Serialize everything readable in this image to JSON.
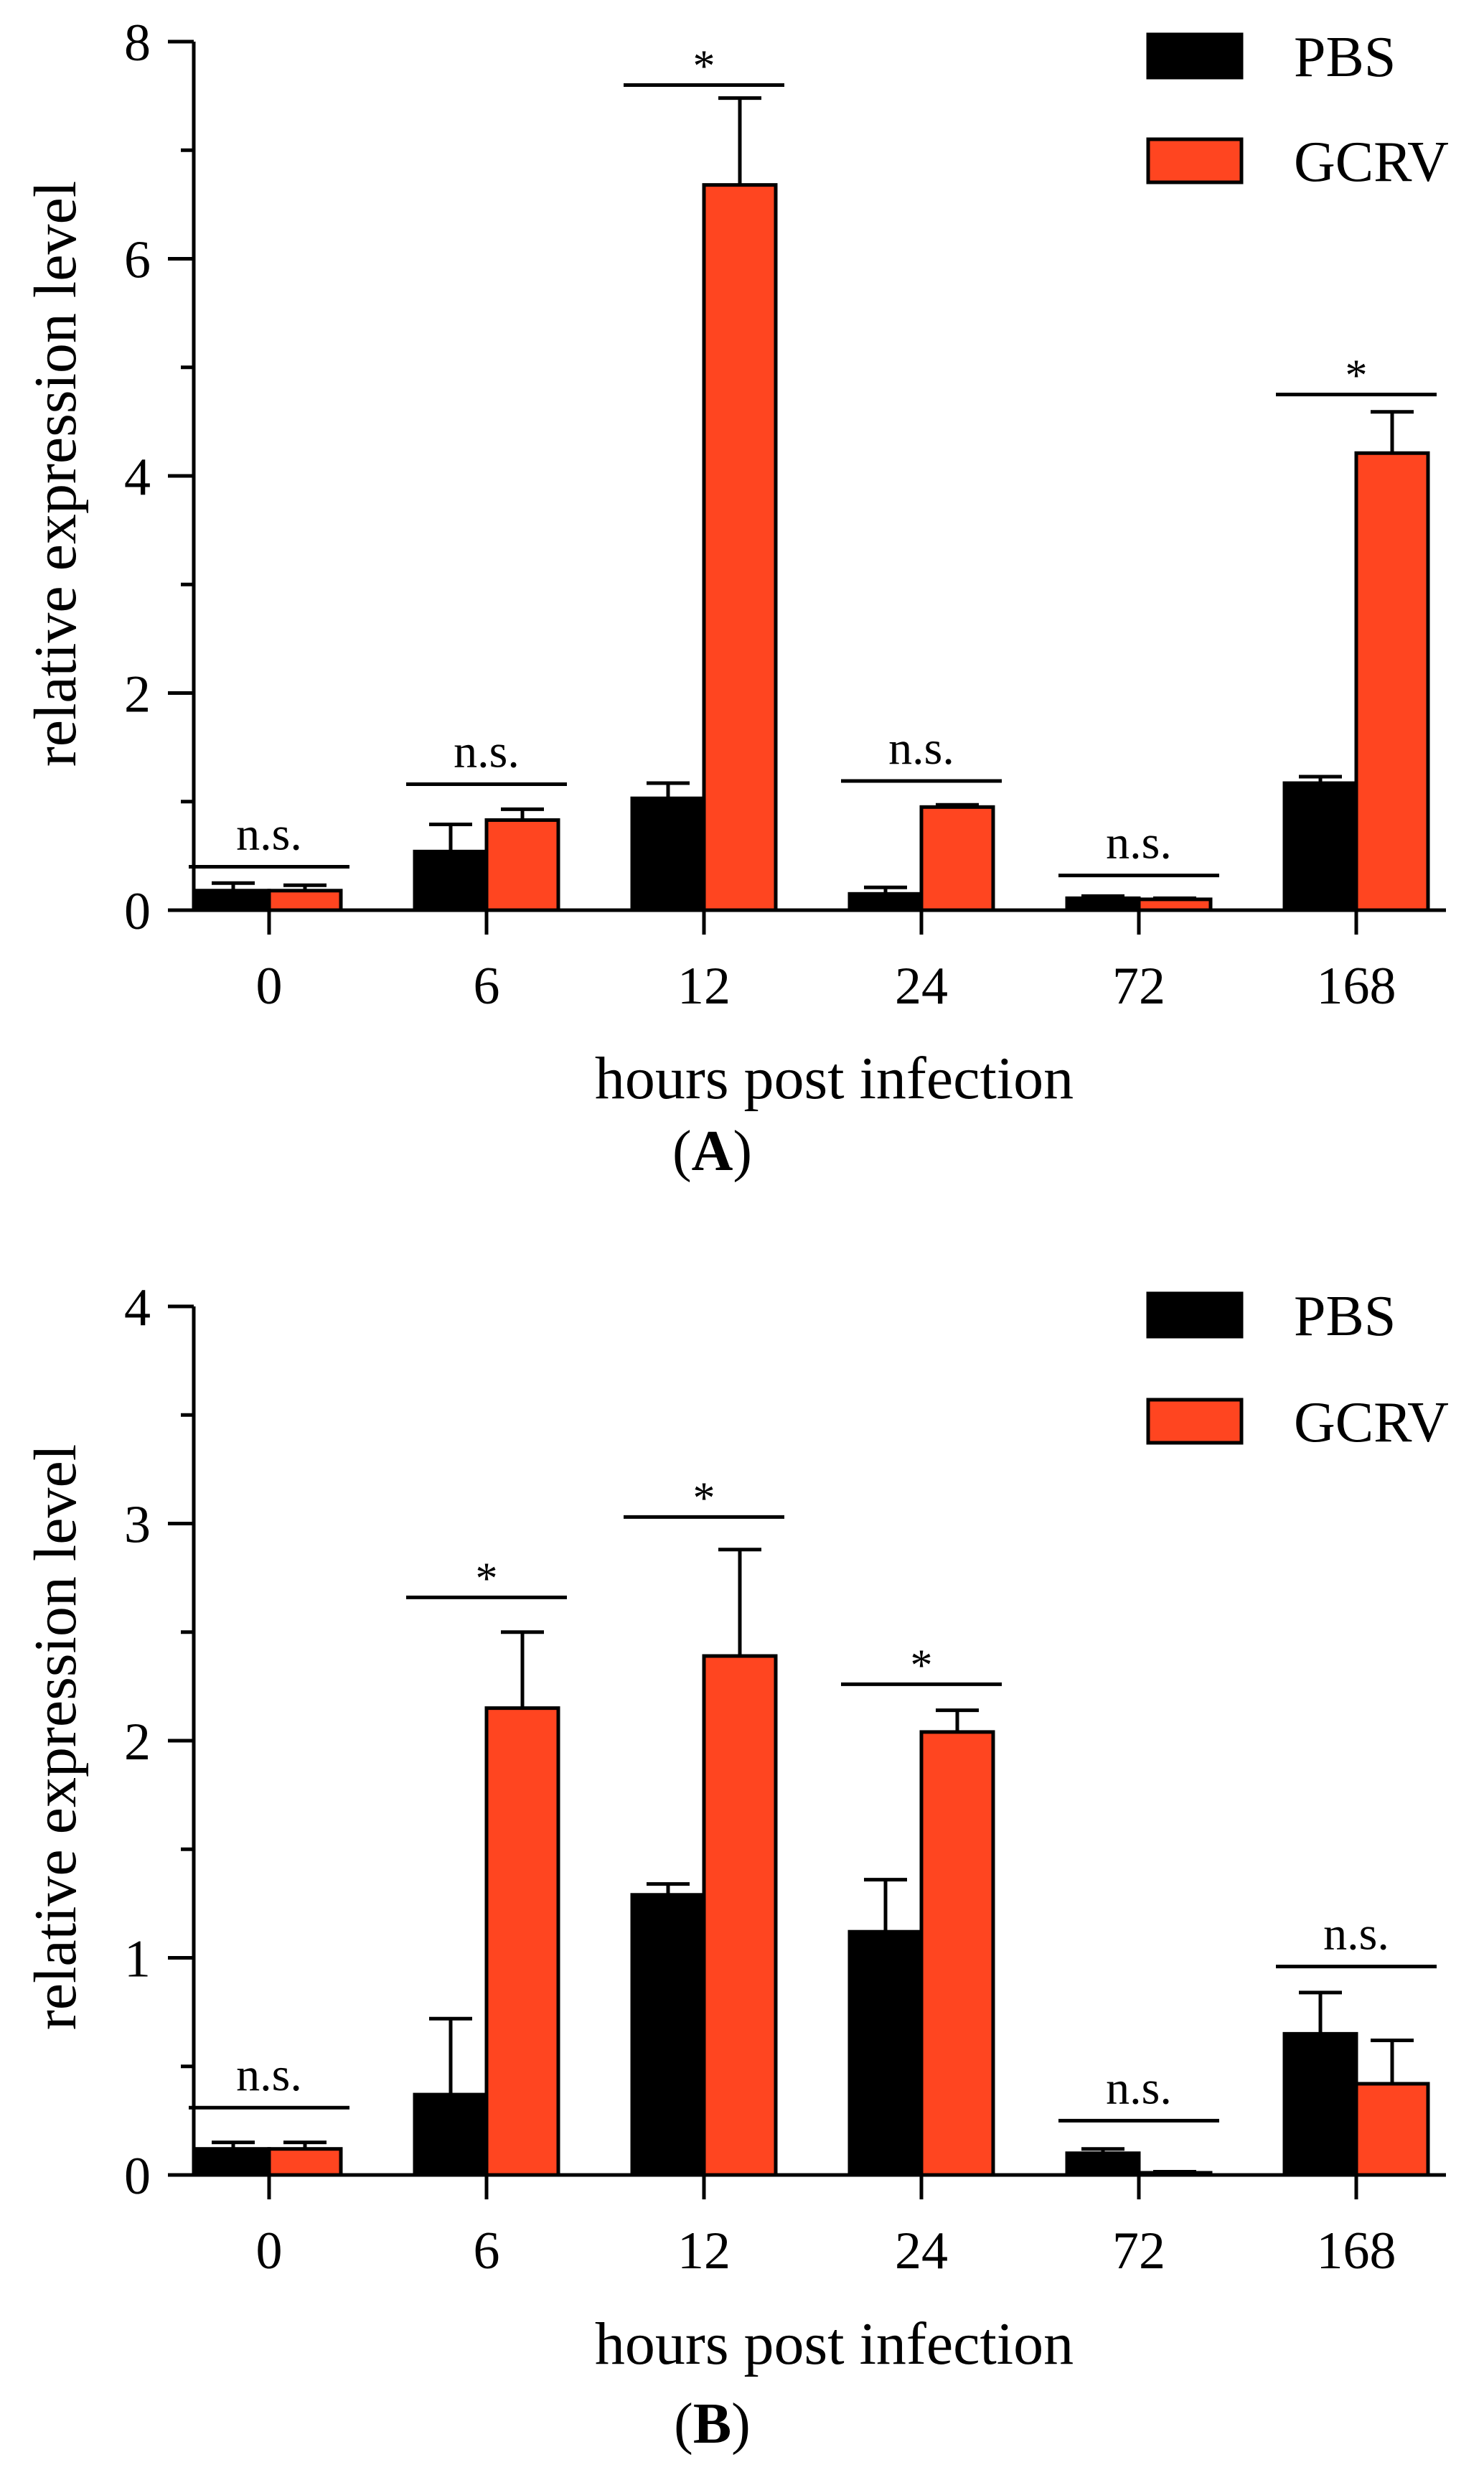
{
  "colors": {
    "pbs": "#000000",
    "gcrv": "#ff4520",
    "axis": "#000000"
  },
  "chart_data": [
    {
      "type": "bar",
      "panel_label": "A",
      "xlabel": "hours post infection",
      "ylabel": "relative expression level",
      "ylim": [
        0,
        8
      ],
      "yticks": [
        "0",
        "2",
        "4",
        "6",
        "8"
      ],
      "ytick_values": [
        0,
        2,
        4,
        6,
        8
      ],
      "minor_yticks": [
        1,
        3,
        5,
        7
      ],
      "categories": [
        "0",
        "6",
        "12",
        "24",
        "72",
        "168"
      ],
      "legend": [
        "PBS",
        "GCRV"
      ],
      "legend_position": "top-right",
      "series": [
        {
          "name": "PBS",
          "values": [
            0.18,
            0.54,
            1.03,
            0.15,
            0.11,
            1.17
          ],
          "errors": [
            0.07,
            0.25,
            0.14,
            0.06,
            0.02,
            0.06
          ]
        },
        {
          "name": "GCRV",
          "values": [
            0.18,
            0.83,
            6.68,
            0.95,
            0.1,
            4.21
          ],
          "errors": [
            0.05,
            0.1,
            0.8,
            0.02,
            0.01,
            0.38
          ]
        }
      ],
      "significance": [
        {
          "category": 0,
          "label": "n.s.",
          "y": 0.4
        },
        {
          "category": 1,
          "label": "n.s.",
          "y": 1.16
        },
        {
          "category": 2,
          "label": "*",
          "y": 7.6
        },
        {
          "category": 3,
          "label": "n.s.",
          "y": 1.19
        },
        {
          "category": 4,
          "label": "n.s.",
          "y": 0.32
        },
        {
          "category": 5,
          "label": "*",
          "y": 4.75
        }
      ]
    },
    {
      "type": "bar",
      "panel_label": "B",
      "xlabel": "hours post infection",
      "ylabel": "relative expression level",
      "ylim": [
        0,
        4
      ],
      "yticks": [
        "0",
        "1",
        "2",
        "3",
        "4"
      ],
      "ytick_values": [
        0,
        1,
        2,
        3,
        4
      ],
      "minor_yticks": [
        0.5,
        1.5,
        2.5,
        3.5
      ],
      "categories": [
        "0",
        "6",
        "12",
        "24",
        "72",
        "168"
      ],
      "legend": [
        "PBS",
        "GCRV"
      ],
      "legend_position": "top-right",
      "series": [
        {
          "name": "PBS",
          "values": [
            0.12,
            0.37,
            1.29,
            1.12,
            0.1,
            0.65
          ],
          "errors": [
            0.03,
            0.35,
            0.05,
            0.24,
            0.02,
            0.19
          ]
        },
        {
          "name": "GCRV",
          "values": [
            0.12,
            2.15,
            2.39,
            2.04,
            0.01,
            0.42
          ],
          "errors": [
            0.03,
            0.35,
            0.49,
            0.1,
            0.005,
            0.2
          ]
        }
      ],
      "significance": [
        {
          "category": 0,
          "label": "n.s.",
          "y": 0.31
        },
        {
          "category": 1,
          "label": "*",
          "y": 2.66
        },
        {
          "category": 2,
          "label": "*",
          "y": 3.03
        },
        {
          "category": 3,
          "label": "*",
          "y": 2.26
        },
        {
          "category": 4,
          "label": "n.s.",
          "y": 0.25
        },
        {
          "category": 5,
          "label": "n.s.",
          "y": 0.96
        }
      ]
    }
  ]
}
